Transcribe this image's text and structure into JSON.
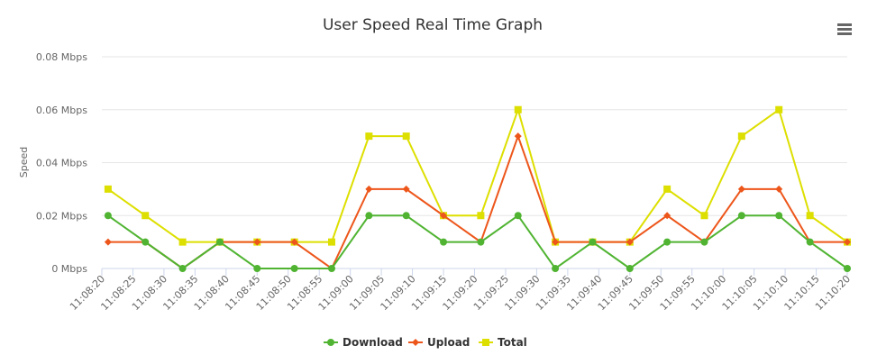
{
  "chart_data": {
    "type": "line",
    "title": "User Speed Real Time Graph",
    "y_label": "Speed",
    "x": [
      "11:08:21",
      "11:08:27",
      "11:08:33",
      "11:08:39",
      "11:08:45",
      "11:08:51",
      "11:08:57",
      "11:09:03",
      "11:09:09",
      "11:09:15",
      "11:09:21",
      "11:09:27",
      "11:09:33",
      "11:09:39",
      "11:09:45",
      "11:09:51",
      "11:09:57",
      "11:10:03",
      "11:10:09",
      "11:10:14",
      "11:10:20"
    ],
    "series": [
      {
        "name": "Download",
        "color": "#50b432",
        "marker": "circle",
        "values": [
          0.02,
          0.01,
          0,
          0.01,
          0,
          0,
          0,
          0.02,
          0.02,
          0.01,
          0.01,
          0.02,
          0,
          0.01,
          0,
          0.01,
          0.01,
          0.02,
          0.02,
          0.01,
          0
        ]
      },
      {
        "name": "Upload",
        "color": "#ed561b",
        "marker": "diamond",
        "values": [
          0.01,
          0.01,
          0,
          0.01,
          0.01,
          0.01,
          0,
          0.03,
          0.03,
          0.02,
          0.01,
          0.05,
          0.01,
          0.01,
          0.01,
          0.02,
          0.01,
          0.03,
          0.03,
          0.01,
          0.01
        ]
      },
      {
        "name": "Total",
        "color": "#dddf00",
        "marker": "square",
        "values": [
          0.03,
          0.02,
          0.01,
          0.01,
          0.01,
          0.01,
          0.01,
          0.05,
          0.05,
          0.02,
          0.02,
          0.06,
          0.01,
          0.01,
          0.01,
          0.03,
          0.02,
          0.05,
          0.06,
          0.02,
          0.01
        ]
      }
    ],
    "xlim": [
      "11:08:20",
      "11:10:20"
    ],
    "xticks": [
      "11:08:20",
      "11:08:25",
      "11:08:30",
      "11:08:35",
      "11:08:40",
      "11:08:45",
      "11:08:50",
      "11:08:55",
      "11:09:00",
      "11:09:05",
      "11:09:10",
      "11:09:15",
      "11:09:20",
      "11:09:25",
      "11:09:30",
      "11:09:35",
      "11:09:40",
      "11:09:45",
      "11:09:50",
      "11:09:55",
      "11:10:00",
      "11:10:05",
      "11:10:10",
      "11:10:15",
      "11:10:20"
    ],
    "ylim": [
      0,
      0.08
    ],
    "yticks": [
      {
        "value": 0,
        "label": "0 Mbps"
      },
      {
        "value": 0.02,
        "label": "0.02 Mbps"
      },
      {
        "value": 0.04,
        "label": "0.04 Mbps"
      },
      {
        "value": 0.06,
        "label": "0.06 Mbps"
      },
      {
        "value": 0.08,
        "label": "0.08 Mbps"
      }
    ],
    "grid": true,
    "legend": "bottom"
  }
}
